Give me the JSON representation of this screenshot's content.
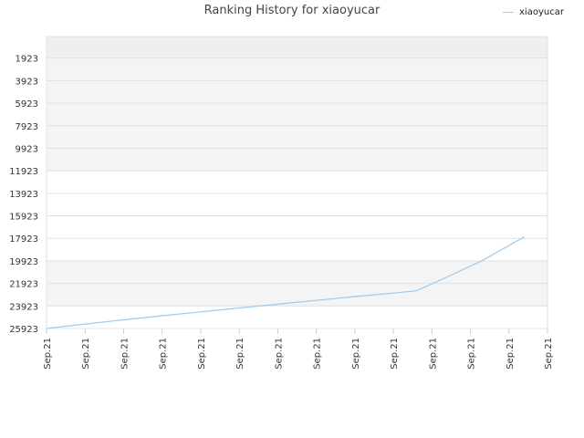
{
  "chart_data": {
    "type": "line",
    "title": "Ranking History for xiaoyucar",
    "xlabel": "",
    "ylabel": "",
    "y_inverted": true,
    "ylim": [
      25923,
      0
    ],
    "grid": true,
    "legend_position": "top-right",
    "y_ticks": [
      "1923",
      "3923",
      "5923",
      "7923",
      "9923",
      "11923",
      "13923",
      "15923",
      "17923",
      "19923",
      "21923",
      "23923",
      "25923"
    ],
    "x_ticks": [
      "Sep.21",
      "Sep.21",
      "Sep.21",
      "Sep.21",
      "Sep.21",
      "Sep.21",
      "Sep.21",
      "Sep.21",
      "Sep.21",
      "Sep.21",
      "Sep.21",
      "Sep.21",
      "Sep.21",
      "Sep.21"
    ],
    "series": [
      {
        "name": "xiaoyucar",
        "color": "#9ccaf0",
        "x": [
          0,
          1,
          2,
          3,
          4,
          5,
          6,
          7,
          8,
          9,
          9.6,
          10.5,
          11.3,
          12.4
        ],
        "values": [
          25923,
          25530,
          25150,
          24790,
          24450,
          24100,
          23770,
          23430,
          23090,
          22780,
          22580,
          21180,
          19900,
          17780
        ]
      }
    ],
    "x_range": [
      0,
      13
    ],
    "band_colors": [
      "#efefef",
      "#f4f4f4",
      "#ffffff"
    ]
  }
}
